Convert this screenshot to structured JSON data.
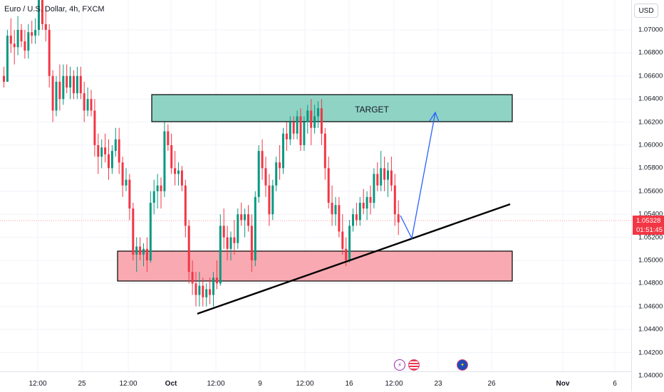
{
  "header": {
    "symbol_title": "Euro / U.S. Dollar, 4h, FXCM"
  },
  "price_axis": {
    "currency": "USD",
    "ticks": [
      "1.07000",
      "1.06800",
      "1.06600",
      "1.06400",
      "1.06200",
      "1.06000",
      "1.05800",
      "1.05600",
      "1.05400",
      "1.05200",
      "1.05000",
      "1.04800",
      "1.04600",
      "1.04400",
      "1.04200",
      "1.04000"
    ],
    "current_price": "1.05328",
    "countdown": "01:51:45"
  },
  "time_axis": {
    "ticks": [
      "12:00",
      "25",
      "12:00",
      "Oct",
      "12:00",
      "9",
      "12:00",
      "16",
      "12:00",
      "23",
      "26",
      "Nov",
      "6"
    ]
  },
  "annotations": {
    "target_label": "TARGET",
    "target_zone_color": "#8fd3c4",
    "support_zone_color": "#f9a9b1",
    "projection_color": "#2962ff",
    "trendline_color": "#000000"
  },
  "events": [
    "lightning-icon",
    "us-flag-icon",
    "eu-flag-icon"
  ],
  "colors": {
    "up": "#089981",
    "down": "#f23645",
    "price_line": "#f23645"
  },
  "chart_data": {
    "type": "candlestick",
    "symbol": "EURUSD",
    "timeframe": "4h",
    "ylim": [
      1.04,
      1.072
    ],
    "candles": [
      [
        1.066,
        1.0668,
        1.065,
        1.0655
      ],
      [
        1.0655,
        1.07,
        1.0655,
        1.0695
      ],
      [
        1.0695,
        1.071,
        1.068,
        1.0688
      ],
      [
        1.0688,
        1.07,
        1.067,
        1.0685
      ],
      [
        1.0685,
        1.0712,
        1.0678,
        1.07
      ],
      [
        1.07,
        1.0705,
        1.0685,
        1.069
      ],
      [
        1.069,
        1.07,
        1.0675,
        1.0682
      ],
      [
        1.0682,
        1.0705,
        1.0675,
        1.0698
      ],
      [
        1.0698,
        1.0708,
        1.0688,
        1.0695
      ],
      [
        1.0695,
        1.071,
        1.0688,
        1.07
      ],
      [
        1.07,
        1.074,
        1.0695,
        1.073
      ],
      [
        1.073,
        1.0735,
        1.07,
        1.0705
      ],
      [
        1.0705,
        1.072,
        1.069,
        1.07
      ],
      [
        1.07,
        1.0705,
        1.065,
        1.066
      ],
      [
        1.066,
        1.0665,
        1.062,
        1.063
      ],
      [
        1.063,
        1.066,
        1.0625,
        1.0655
      ],
      [
        1.0655,
        1.067,
        1.063,
        1.064
      ],
      [
        1.064,
        1.067,
        1.0635,
        1.066
      ],
      [
        1.066,
        1.067,
        1.0645,
        1.065
      ],
      [
        1.065,
        1.0668,
        1.064,
        1.066
      ],
      [
        1.066,
        1.0665,
        1.064,
        1.0645
      ],
      [
        1.0645,
        1.0668,
        1.064,
        1.066
      ],
      [
        1.066,
        1.0668,
        1.064,
        1.0645
      ],
      [
        1.0645,
        1.0655,
        1.062,
        1.063
      ],
      [
        1.063,
        1.065,
        1.0625,
        1.064
      ],
      [
        1.064,
        1.0648,
        1.0625,
        1.063
      ],
      [
        1.063,
        1.064,
        1.059,
        1.06
      ],
      [
        1.06,
        1.061,
        1.0575,
        1.059
      ],
      [
        1.059,
        1.0605,
        1.058,
        1.0598
      ],
      [
        1.0598,
        1.061,
        1.0585,
        1.0592
      ],
      [
        1.0592,
        1.0605,
        1.057,
        1.058
      ],
      [
        1.058,
        1.06,
        1.0575,
        1.0595
      ],
      [
        1.0595,
        1.0615,
        1.059,
        1.0605
      ],
      [
        1.0605,
        1.0615,
        1.0575,
        1.0585
      ],
      [
        1.0585,
        1.059,
        1.0555,
        1.0565
      ],
      [
        1.0565,
        1.058,
        1.056,
        1.057
      ],
      [
        1.057,
        1.0575,
        1.0535,
        1.0545
      ],
      [
        1.0545,
        1.055,
        1.05,
        1.0505
      ],
      [
        1.0505,
        1.052,
        1.049,
        1.0512
      ],
      [
        1.0512,
        1.052,
        1.05,
        1.0505
      ],
      [
        1.0505,
        1.0515,
        1.0495,
        1.051
      ],
      [
        1.051,
        1.052,
        1.049,
        1.05
      ],
      [
        1.05,
        1.056,
        1.0498,
        1.055
      ],
      [
        1.055,
        1.057,
        1.054,
        1.056
      ],
      [
        1.056,
        1.0575,
        1.0545,
        1.0565
      ],
      [
        1.0565,
        1.0572,
        1.0545,
        1.056
      ],
      [
        1.056,
        1.062,
        1.0555,
        1.0612
      ],
      [
        1.0612,
        1.0618,
        1.0595,
        1.06
      ],
      [
        1.06,
        1.061,
        1.0575,
        1.058
      ],
      [
        1.058,
        1.0595,
        1.0565,
        1.0575
      ],
      [
        1.0575,
        1.0585,
        1.0565,
        1.0578
      ],
      [
        1.0578,
        1.0582,
        1.056,
        1.0565
      ],
      [
        1.0565,
        1.057,
        1.052,
        1.053
      ],
      [
        1.053,
        1.0535,
        1.048,
        1.049
      ],
      [
        1.049,
        1.05,
        1.047,
        1.048
      ],
      [
        1.048,
        1.049,
        1.046,
        1.047
      ],
      [
        1.047,
        1.049,
        1.046,
        1.0478
      ],
      [
        1.0478,
        1.0485,
        1.046,
        1.0468
      ],
      [
        1.0468,
        1.048,
        1.046,
        1.0475
      ],
      [
        1.0475,
        1.0485,
        1.0462,
        1.047
      ],
      [
        1.047,
        1.049,
        1.046,
        1.0485
      ],
      [
        1.0485,
        1.05,
        1.0475,
        1.048
      ],
      [
        1.048,
        1.054,
        1.0478,
        1.053
      ],
      [
        1.053,
        1.0545,
        1.051,
        1.052
      ],
      [
        1.052,
        1.053,
        1.05,
        1.051
      ],
      [
        1.051,
        1.0525,
        1.05,
        1.052
      ],
      [
        1.052,
        1.0535,
        1.0505,
        1.0515
      ],
      [
        1.0515,
        1.0545,
        1.051,
        1.054
      ],
      [
        1.054,
        1.055,
        1.053,
        1.0535
      ],
      [
        1.0535,
        1.0545,
        1.052,
        1.054
      ],
      [
        1.054,
        1.0548,
        1.0525,
        1.053
      ],
      [
        1.053,
        1.054,
        1.049,
        1.05
      ],
      [
        1.05,
        1.056,
        1.0495,
        1.0555
      ],
      [
        1.0555,
        1.06,
        1.055,
        1.0595
      ],
      [
        1.0595,
        1.0605,
        1.057,
        1.058
      ],
      [
        1.058,
        1.059,
        1.0555,
        1.0565
      ],
      [
        1.0565,
        1.0575,
        1.053,
        1.054
      ],
      [
        1.054,
        1.057,
        1.0535,
        1.0565
      ],
      [
        1.0565,
        1.059,
        1.056,
        1.0585
      ],
      [
        1.0585,
        1.06,
        1.057,
        1.058
      ],
      [
        1.058,
        1.0615,
        1.0575,
        1.061
      ],
      [
        1.061,
        1.062,
        1.0595,
        1.0605
      ],
      [
        1.0605,
        1.0625,
        1.06,
        1.062
      ],
      [
        1.062,
        1.0625,
        1.0605,
        1.061
      ],
      [
        1.061,
        1.063,
        1.0605,
        1.0625
      ],
      [
        1.0625,
        1.0632,
        1.0595,
        1.06
      ],
      [
        1.06,
        1.0625,
        1.0595,
        1.062
      ],
      [
        1.062,
        1.0635,
        1.061,
        1.063
      ],
      [
        1.063,
        1.064,
        1.06,
        1.0615
      ],
      [
        1.0615,
        1.0635,
        1.061,
        1.0625
      ],
      [
        1.0625,
        1.0638,
        1.0615,
        1.0632
      ],
      [
        1.0632,
        1.064,
        1.06,
        1.061
      ],
      [
        1.061,
        1.0615,
        1.057,
        1.058
      ],
      [
        1.058,
        1.059,
        1.0545,
        1.055
      ],
      [
        1.055,
        1.0565,
        1.053,
        1.054
      ],
      [
        1.054,
        1.0555,
        1.053,
        1.0548
      ],
      [
        1.0548,
        1.0555,
        1.052,
        1.0525
      ],
      [
        1.0525,
        1.054,
        1.0505,
        1.051
      ],
      [
        1.051,
        1.052,
        1.0495,
        1.05
      ],
      [
        1.05,
        1.0535,
        1.0498,
        1.053
      ],
      [
        1.053,
        1.0545,
        1.0525,
        1.054
      ],
      [
        1.054,
        1.055,
        1.053,
        1.0535
      ],
      [
        1.0535,
        1.0555,
        1.053,
        1.055
      ],
      [
        1.055,
        1.0562,
        1.054,
        1.0545
      ],
      [
        1.0545,
        1.056,
        1.0535,
        1.0555
      ],
      [
        1.0555,
        1.0565,
        1.054,
        1.055
      ],
      [
        1.055,
        1.058,
        1.0545,
        1.0575
      ],
      [
        1.0575,
        1.0585,
        1.056,
        1.0565
      ],
      [
        1.0565,
        1.0595,
        1.056,
        1.058
      ],
      [
        1.058,
        1.059,
        1.056,
        1.057
      ],
      [
        1.057,
        1.0585,
        1.0555,
        1.0578
      ],
      [
        1.0578,
        1.059,
        1.056,
        1.0565
      ],
      [
        1.0565,
        1.0575,
        1.053,
        1.054
      ],
      [
        1.054,
        1.0552,
        1.0522,
        1.0533
      ]
    ]
  }
}
